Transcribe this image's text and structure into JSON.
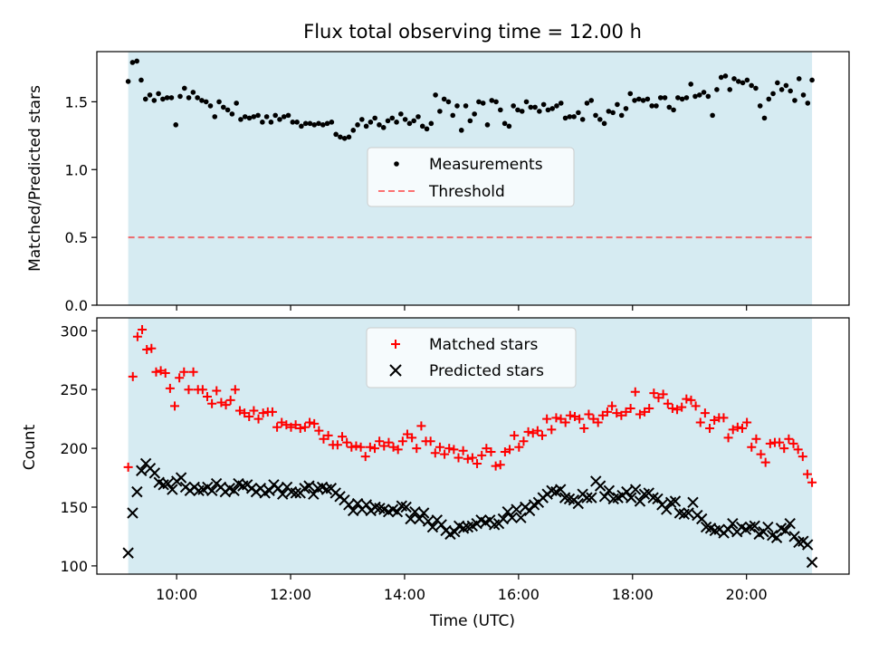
{
  "title": "Flux total observing time = 12.00 h",
  "colors": {
    "shade": "#add8e6",
    "measurement": "#000000",
    "threshold": "#ff0000",
    "matched": "#ff0000",
    "predicted": "#000000"
  },
  "x_axis": {
    "label": "Time (UTC)",
    "range_hours": [
      8.6,
      21.8
    ],
    "ticks": [
      {
        "h": 10,
        "label": "10:00"
      },
      {
        "h": 12,
        "label": "12:00"
      },
      {
        "h": 14,
        "label": "14:00"
      },
      {
        "h": 16,
        "label": "16:00"
      },
      {
        "h": 18,
        "label": "18:00"
      },
      {
        "h": 20,
        "label": "20:00"
      }
    ],
    "shaded_span_hours": [
      9.15,
      21.15
    ]
  },
  "chart_data": [
    {
      "type": "scatter",
      "ylabel": "Matched/Predicted stars",
      "ylim": [
        0,
        1.87
      ],
      "yticks": [
        "0.0",
        "0.5",
        "1.0",
        "1.5"
      ],
      "threshold": 0.5,
      "legend": {
        "placement": "center",
        "entries": [
          "Measurements",
          "Threshold"
        ]
      },
      "series": [
        {
          "name": "Measurements",
          "x_hours": [],
          "values": [
            1.65,
            1.79,
            1.8,
            1.66,
            1.52,
            1.55,
            1.51,
            1.56,
            1.52,
            1.53,
            1.53,
            1.33,
            1.54,
            1.6,
            1.53,
            1.57,
            1.53,
            1.51,
            1.5,
            1.47,
            1.39,
            1.5,
            1.46,
            1.44,
            1.41,
            1.49,
            1.37,
            1.39,
            1.38,
            1.39,
            1.4,
            1.35,
            1.39,
            1.35,
            1.4,
            1.37,
            1.39,
            1.4,
            1.35,
            1.35,
            1.32,
            1.34,
            1.34,
            1.33,
            1.34,
            1.33,
            1.34,
            1.35,
            1.26,
            1.24,
            1.23,
            1.24,
            1.29,
            1.33,
            1.37,
            1.32,
            1.35,
            1.38,
            1.33,
            1.31,
            1.36,
            1.38,
            1.35,
            1.41,
            1.37,
            1.34,
            1.36,
            1.39,
            1.32,
            1.3,
            1.34,
            1.55,
            1.43,
            1.52,
            1.5,
            1.4,
            1.47,
            1.29,
            1.47,
            1.36,
            1.41,
            1.5,
            1.49,
            1.33,
            1.51,
            1.5,
            1.44,
            1.34,
            1.32,
            1.47,
            1.44,
            1.43,
            1.5,
            1.46,
            1.46,
            1.43,
            1.48,
            1.44,
            1.45,
            1.47,
            1.49,
            1.38,
            1.39,
            1.39,
            1.42,
            1.37,
            1.49,
            1.51,
            1.4,
            1.37,
            1.34,
            1.43,
            1.42,
            1.48,
            1.4,
            1.45,
            1.56,
            1.51,
            1.52,
            1.51,
            1.52,
            1.47,
            1.47,
            1.53,
            1.53,
            1.46,
            1.44,
            1.53,
            1.52,
            1.53,
            1.63,
            1.54,
            1.55,
            1.57,
            1.54,
            1.4,
            1.59,
            1.68,
            1.69,
            1.59,
            1.67,
            1.65,
            1.64,
            1.66,
            1.62,
            1.6,
            1.47,
            1.38,
            1.52,
            1.56,
            1.64,
            1.59,
            1.62,
            1.58,
            1.51,
            1.67,
            1.55,
            1.49,
            1.66
          ]
        }
      ]
    },
    {
      "type": "scatter",
      "ylabel": "Count",
      "ylim": [
        93,
        311
      ],
      "yticks": [
        "100",
        "150",
        "200",
        "250",
        "300"
      ],
      "legend": {
        "placement": "top-center",
        "entries": [
          "Matched stars",
          "Predicted stars"
        ]
      },
      "series": [
        {
          "name": "Matched stars",
          "marker": "plus",
          "x_hours": [],
          "values": [
            184,
            261,
            295,
            301,
            284,
            285,
            265,
            266,
            264,
            251,
            236,
            260,
            265,
            250,
            265,
            250,
            250,
            244,
            238,
            249,
            239,
            237,
            241,
            250,
            232,
            230,
            227,
            232,
            225,
            230,
            231,
            231,
            218,
            222,
            220,
            218,
            220,
            217,
            218,
            222,
            221,
            215,
            208,
            211,
            203,
            203,
            210,
            205,
            201,
            202,
            201,
            193,
            201,
            200,
            206,
            202,
            205,
            201,
            199,
            206,
            212,
            209,
            200,
            219,
            206,
            206,
            196,
            201,
            195,
            200,
            199,
            192,
            198,
            191,
            192,
            187,
            194,
            200,
            197,
            185,
            186,
            197,
            199,
            211,
            201,
            206,
            214,
            213,
            215,
            211,
            225,
            216,
            226,
            225,
            222,
            228,
            227,
            225,
            217,
            229,
            225,
            222,
            228,
            231,
            236,
            230,
            228,
            231,
            234,
            248,
            229,
            231,
            234,
            247,
            243,
            246,
            238,
            234,
            233,
            235,
            242,
            241,
            236,
            222,
            230,
            217,
            224,
            226,
            226,
            209,
            216,
            218,
            217,
            222,
            201,
            208,
            195,
            188,
            204,
            205,
            205,
            200,
            208,
            204,
            199,
            193,
            178,
            171
          ]
        },
        {
          "name": "Predicted stars",
          "marker": "x",
          "x_hours": [],
          "values": [
            111,
            145,
            163,
            181,
            187,
            183,
            179,
            171,
            169,
            170,
            165,
            172,
            175,
            167,
            164,
            167,
            164,
            165,
            167,
            164,
            170,
            167,
            163,
            166,
            164,
            170,
            168,
            169,
            166,
            163,
            166,
            162,
            164,
            169,
            166,
            161,
            167,
            163,
            162,
            162,
            166,
            168,
            161,
            166,
            167,
            165,
            166,
            162,
            159,
            156,
            152,
            147,
            153,
            148,
            152,
            147,
            150,
            149,
            148,
            146,
            148,
            146,
            151,
            150,
            140,
            146,
            140,
            145,
            138,
            133,
            139,
            135,
            130,
            127,
            129,
            134,
            132,
            133,
            134,
            136,
            139,
            137,
            139,
            135,
            136,
            140,
            146,
            141,
            148,
            141,
            150,
            147,
            152,
            154,
            158,
            161,
            164,
            163,
            165,
            158,
            157,
            156,
            153,
            161,
            158,
            158,
            172,
            168,
            159,
            164,
            157,
            158,
            160,
            163,
            158,
            165,
            155,
            161,
            162,
            158,
            157,
            152,
            148,
            154,
            155,
            145,
            144,
            145,
            154,
            143,
            140,
            133,
            132,
            130,
            131,
            128,
            131,
            136,
            129,
            133,
            131,
            133,
            134,
            127,
            129,
            133,
            126,
            124,
            132,
            130,
            136,
            125,
            120,
            121,
            118,
            103
          ]
        }
      ]
    }
  ]
}
